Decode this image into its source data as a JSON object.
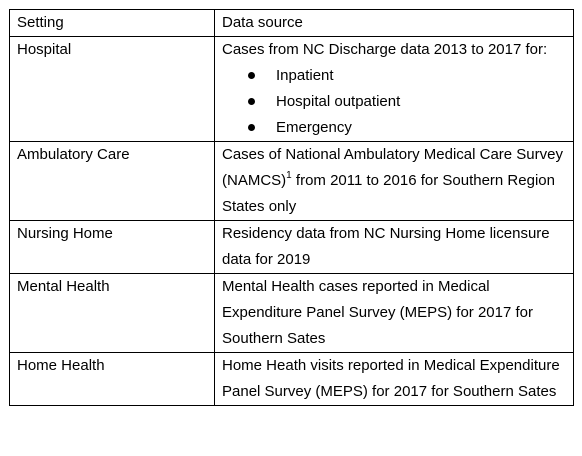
{
  "table": {
    "headers": {
      "setting": "Setting",
      "source": "Data source"
    },
    "rows": [
      {
        "setting": "Hospital",
        "source": "Cases from NC Discharge data 2013 to 2017 for:",
        "bullets": [
          "Inpatient",
          "Hospital outpatient",
          "Emergency"
        ]
      },
      {
        "setting": "Ambulatory Care",
        "source_before": "Cases of National Ambulatory Medical Care Survey (NAMCS)",
        "footnote": "1",
        "source_after": " from 2011 to 2016 for Southern Region States only"
      },
      {
        "setting": "Nursing Home",
        "source": "Residency data from NC Nursing Home licensure data for 2019"
      },
      {
        "setting": "Mental Health",
        "source": "Mental Health cases reported in Medical Expenditure Panel Survey (MEPS) for 2017 for Southern Sates"
      },
      {
        "setting": "Home Health",
        "source": "Home Heath visits reported in Medical Expenditure Panel Survey (MEPS) for 2017 for Southern Sates"
      }
    ]
  }
}
